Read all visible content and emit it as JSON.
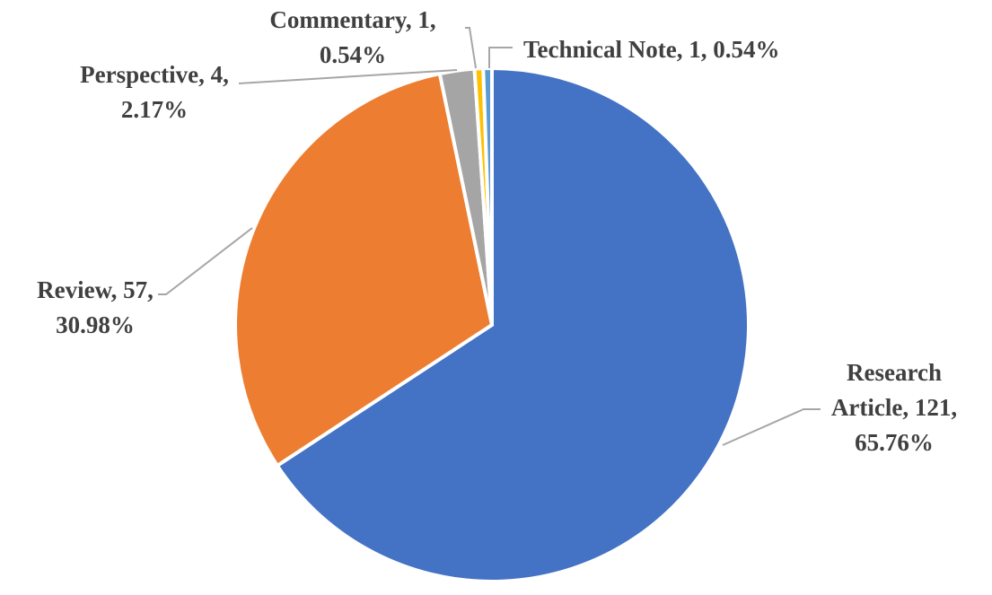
{
  "chart_data": {
    "type": "pie",
    "title": "",
    "start_angle_deg": 0,
    "direction": "clockwise",
    "slices": [
      {
        "label": "Research Article",
        "value": 121,
        "percent": "65.76%",
        "color": "#4472C4"
      },
      {
        "label": "Review",
        "value": 57,
        "percent": "30.98%",
        "color": "#ED7D31"
      },
      {
        "label": "Perspective",
        "value": 4,
        "percent": "2.17%",
        "color": "#A5A5A5"
      },
      {
        "label": "Commentary",
        "value": 1,
        "percent": "0.54%",
        "color": "#FFC000"
      },
      {
        "label": "Technical Note",
        "value": 1,
        "percent": "0.54%",
        "color": "#5B9BD5"
      }
    ],
    "data_labels": [
      {
        "lines": [
          "Research",
          "Article, 121,",
          "65.76%"
        ]
      },
      {
        "lines": [
          "Review, 57,",
          "30.98%"
        ]
      },
      {
        "lines": [
          "Perspective, 4,",
          "2.17%"
        ]
      },
      {
        "lines": [
          "Commentary, 1,",
          "0.54%"
        ]
      },
      {
        "lines": [
          "Technical Note, 1, 0.54%"
        ]
      }
    ],
    "legend": "none"
  }
}
